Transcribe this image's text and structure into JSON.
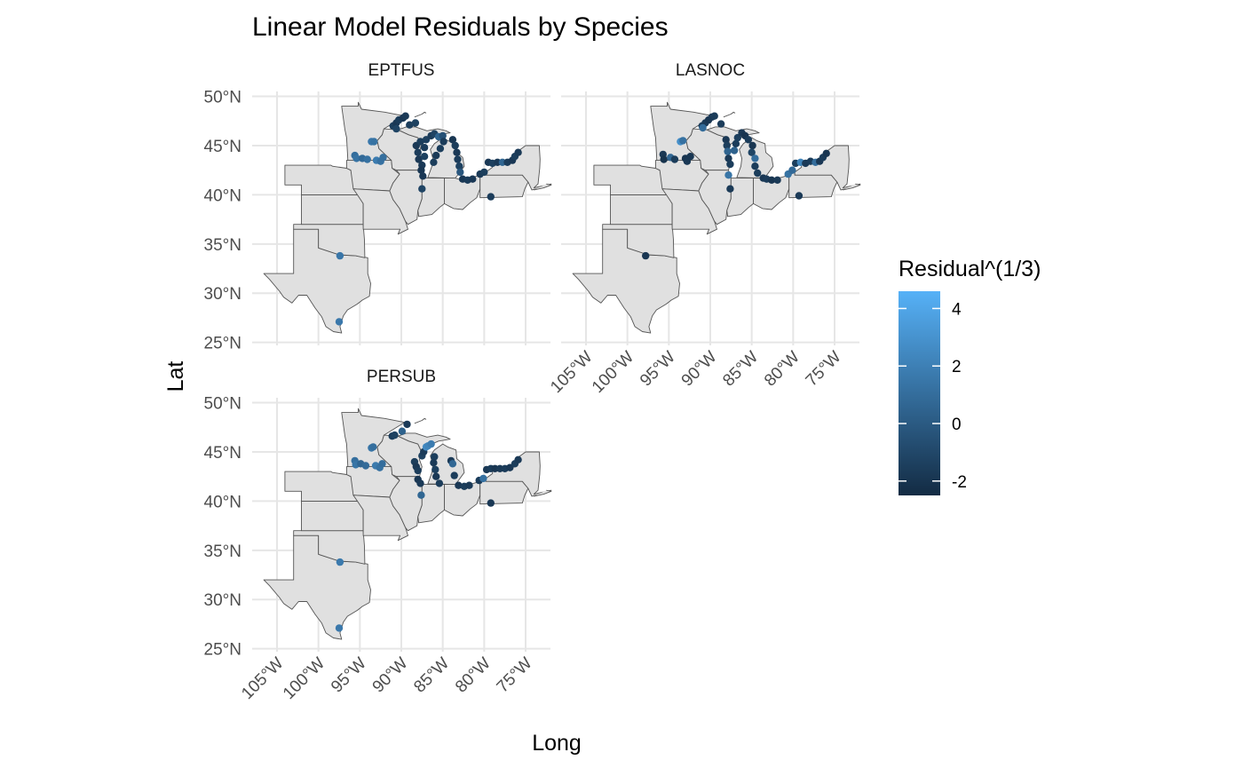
{
  "chart_data": {
    "type": "scatter",
    "title": "Linear Model Residuals by Species",
    "xlabel": "Long",
    "ylabel": "Lat",
    "xlim": [
      -108,
      -72
    ],
    "ylim": [
      24.7,
      50.5
    ],
    "x_ticks": [
      "105°W",
      "100°W",
      "95°W",
      "90°W",
      "85°W",
      "80°W",
      "75°W"
    ],
    "y_ticks": [
      "25°N",
      "30°N",
      "35°N",
      "40°N",
      "45°N",
      "50°N"
    ],
    "grid": true,
    "legend": {
      "title": "Residual^(1/3)",
      "placement": "right",
      "min": -2.5,
      "max": 4.6,
      "ticks": [
        "4",
        "2",
        "0",
        "-2"
      ],
      "low_color": "#132B43",
      "high_color": "#56B1F7"
    },
    "panels": [
      {
        "label": "EPTFUS",
        "points": [
          [
            -97.5,
            27.1,
            1.6
          ],
          [
            -97.4,
            33.8,
            1.5
          ],
          [
            -95.6,
            44.0,
            1.0
          ],
          [
            -95.4,
            43.7,
            1.3
          ],
          [
            -94.7,
            43.7,
            0.8
          ],
          [
            -94.1,
            43.6,
            1.2
          ],
          [
            -93.6,
            45.4,
            1.6
          ],
          [
            -93.3,
            45.4,
            1.3
          ],
          [
            -93.0,
            43.5,
            1.8
          ],
          [
            -92.5,
            43.4,
            1.2
          ],
          [
            -92.2,
            43.8,
            1.1
          ],
          [
            -91.0,
            47.0,
            -1.5
          ],
          [
            -90.6,
            47.3,
            -1.8
          ],
          [
            -90.3,
            47.6,
            -1.6
          ],
          [
            -89.8,
            47.8,
            -1.9
          ],
          [
            -89.5,
            48.0,
            -1.7
          ],
          [
            -90.6,
            46.7,
            -1.2
          ],
          [
            -89.0,
            47.1,
            -1.5
          ],
          [
            -88.3,
            47.3,
            -1.3
          ],
          [
            -88.2,
            45.0,
            -1.8
          ],
          [
            -88.0,
            44.3,
            -1.6
          ],
          [
            -87.9,
            43.6,
            -1.8
          ],
          [
            -87.7,
            45.4,
            -1.5
          ],
          [
            -87.5,
            43.0,
            -1.7
          ],
          [
            -87.6,
            42.5,
            -1.9
          ],
          [
            -87.4,
            41.9,
            -1.8
          ],
          [
            -87.5,
            40.6,
            -1.2
          ],
          [
            -87.2,
            44.8,
            -1.6
          ],
          [
            -87.0,
            45.6,
            -1.4
          ],
          [
            -87.2,
            43.9,
            -1.3
          ],
          [
            -86.4,
            46.0,
            -1.6
          ],
          [
            -86.0,
            46.2,
            -1.2
          ],
          [
            -85.5,
            45.9,
            0.5
          ],
          [
            -85.0,
            46.0,
            -0.5
          ],
          [
            -84.9,
            45.4,
            -1.6
          ],
          [
            -85.3,
            44.7,
            -1.5
          ],
          [
            -85.8,
            44.0,
            -1.7
          ],
          [
            -86.1,
            43.3,
            -1.5
          ],
          [
            -83.8,
            45.6,
            -1.9
          ],
          [
            -83.5,
            45.0,
            -1.6
          ],
          [
            -83.3,
            44.3,
            -1.8
          ],
          [
            -83.2,
            43.6,
            -1.6
          ],
          [
            -83.0,
            42.9,
            -1.3
          ],
          [
            -82.9,
            42.3,
            -0.2
          ],
          [
            -82.6,
            41.6,
            -1.8
          ],
          [
            -82.0,
            41.5,
            -1.6
          ],
          [
            -81.4,
            41.6,
            -1.8
          ],
          [
            -80.5,
            42.1,
            -1.7
          ],
          [
            -80.0,
            42.3,
            -1.5
          ],
          [
            -79.5,
            43.3,
            -1.8
          ],
          [
            -79.0,
            43.2,
            -1.4
          ],
          [
            -78.4,
            43.3,
            -1.7
          ],
          [
            -77.8,
            43.3,
            0.6
          ],
          [
            -77.2,
            43.3,
            -1.6
          ],
          [
            -76.6,
            43.5,
            -1.8
          ],
          [
            -76.3,
            43.9,
            -1.5
          ],
          [
            -75.9,
            44.3,
            -1.7
          ],
          [
            -79.2,
            39.8,
            -1.6
          ]
        ]
      },
      {
        "label": "LASNOC",
        "points": [
          [
            -97.8,
            33.8,
            -1.9
          ],
          [
            -95.7,
            44.1,
            -1.8
          ],
          [
            -95.6,
            43.6,
            -2.1
          ],
          [
            -94.8,
            43.8,
            0.7
          ],
          [
            -94.3,
            43.6,
            -1.6
          ],
          [
            -93.6,
            45.4,
            2.8
          ],
          [
            -93.3,
            45.5,
            1.2
          ],
          [
            -93.0,
            43.7,
            -2.0
          ],
          [
            -92.8,
            43.4,
            -1.8
          ],
          [
            -92.4,
            43.9,
            -1.9
          ],
          [
            -91.0,
            47.0,
            -1.5
          ],
          [
            -90.6,
            47.3,
            -1.7
          ],
          [
            -90.2,
            47.6,
            -1.9
          ],
          [
            -89.8,
            47.9,
            -1.8
          ],
          [
            -89.5,
            48.0,
            -1.6
          ],
          [
            -90.9,
            46.8,
            0.9
          ],
          [
            -88.7,
            47.2,
            -1.6
          ],
          [
            -88.1,
            45.6,
            -1.8
          ],
          [
            -88.0,
            45.0,
            -1.5
          ],
          [
            -87.9,
            44.4,
            0.5
          ],
          [
            -87.8,
            43.7,
            -1.7
          ],
          [
            -87.6,
            43.1,
            -1.5
          ],
          [
            -87.8,
            42.0,
            1.4
          ],
          [
            -87.6,
            40.6,
            -1.7
          ],
          [
            -87.1,
            44.5,
            0.4
          ],
          [
            -86.9,
            45.2,
            -1.6
          ],
          [
            -86.7,
            45.8,
            -1.4
          ],
          [
            -86.2,
            46.3,
            -1.8
          ],
          [
            -85.8,
            46.0,
            -2.0
          ],
          [
            -85.4,
            45.6,
            -1.6
          ],
          [
            -84.9,
            45.0,
            -1.9
          ],
          [
            -85.0,
            44.3,
            -1.2
          ],
          [
            -84.6,
            43.7,
            1.0
          ],
          [
            -84.6,
            42.9,
            -1.6
          ],
          [
            -84.3,
            42.2,
            -1.5
          ],
          [
            -83.6,
            41.7,
            -1.8
          ],
          [
            -83.2,
            41.6,
            -1.6
          ],
          [
            -82.6,
            41.5,
            -1.9
          ],
          [
            -81.9,
            41.5,
            -1.7
          ],
          [
            -80.6,
            42.1,
            1.3
          ],
          [
            -80.1,
            42.5,
            0.8
          ],
          [
            -79.7,
            43.2,
            -1.5
          ],
          [
            -79.1,
            43.3,
            2.2
          ],
          [
            -78.5,
            43.2,
            -1.7
          ],
          [
            -77.9,
            43.4,
            -1.6
          ],
          [
            -77.3,
            43.3,
            1.0
          ],
          [
            -76.8,
            43.4,
            -1.8
          ],
          [
            -76.4,
            43.8,
            -1.6
          ],
          [
            -76.0,
            44.2,
            -1.9
          ],
          [
            -79.3,
            39.9,
            -1.7
          ]
        ]
      },
      {
        "label": "PERSUB",
        "points": [
          [
            -97.5,
            27.1,
            1.6
          ],
          [
            -97.4,
            33.8,
            1.7
          ],
          [
            -95.6,
            44.1,
            1.1
          ],
          [
            -95.5,
            43.7,
            1.4
          ],
          [
            -94.9,
            43.8,
            0.6
          ],
          [
            -94.3,
            43.6,
            0.9
          ],
          [
            -93.6,
            45.4,
            1.5
          ],
          [
            -93.4,
            45.5,
            1.1
          ],
          [
            -93.1,
            43.6,
            1.7
          ],
          [
            -92.6,
            43.4,
            1.2
          ],
          [
            -92.3,
            43.8,
            1.0
          ],
          [
            -91.1,
            46.6,
            -1.6
          ],
          [
            -90.8,
            46.7,
            -1.3
          ],
          [
            -89.9,
            47.1,
            0.4
          ],
          [
            -89.3,
            47.8,
            -1.7
          ],
          [
            -88.4,
            44.0,
            -1.5
          ],
          [
            -88.2,
            43.5,
            -1.8
          ],
          [
            -88.0,
            43.1,
            -1.6
          ],
          [
            -88.0,
            42.2,
            -1.9
          ],
          [
            -87.7,
            41.8,
            -1.7
          ],
          [
            -87.6,
            40.6,
            0.6
          ],
          [
            -87.5,
            44.6,
            -1.3
          ],
          [
            -87.3,
            45.0,
            -1.6
          ],
          [
            -87.0,
            45.5,
            2.6
          ],
          [
            -86.8,
            45.6,
            2.2
          ],
          [
            -86.4,
            45.8,
            1.8
          ],
          [
            -86.0,
            44.5,
            -1.5
          ],
          [
            -86.1,
            43.9,
            -1.7
          ],
          [
            -85.9,
            43.2,
            -1.4
          ],
          [
            -85.8,
            42.5,
            -1.8
          ],
          [
            -85.4,
            41.8,
            -1.6
          ],
          [
            -84.0,
            44.1,
            -1.7
          ],
          [
            -83.8,
            43.8,
            0.7
          ],
          [
            -83.6,
            42.6,
            -1.6
          ],
          [
            -83.1,
            41.6,
            -1.8
          ],
          [
            -82.4,
            41.5,
            -1.5
          ],
          [
            -81.8,
            41.6,
            -1.7
          ],
          [
            -80.6,
            42.1,
            -1.6
          ],
          [
            -80.1,
            42.3,
            1.2
          ],
          [
            -79.7,
            43.2,
            -1.8
          ],
          [
            -79.2,
            43.3,
            -1.6
          ],
          [
            -78.7,
            43.3,
            -1.9
          ],
          [
            -78.1,
            43.3,
            -1.7
          ],
          [
            -77.5,
            43.3,
            -1.6
          ],
          [
            -76.9,
            43.4,
            -1.8
          ],
          [
            -76.3,
            43.8,
            -1.5
          ],
          [
            -75.9,
            44.2,
            -1.7
          ],
          [
            -79.2,
            39.8,
            -1.8
          ]
        ]
      }
    ]
  }
}
